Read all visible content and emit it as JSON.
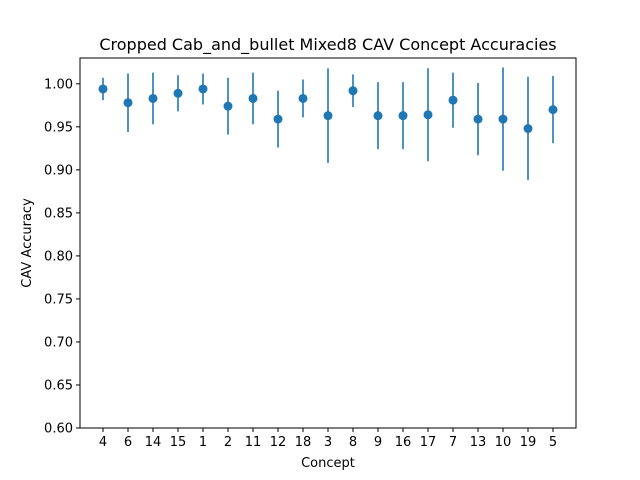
{
  "chart_data": {
    "type": "scatter",
    "title": "Cropped Cab_and_bullet Mixed8 CAV Concept Accuracies",
    "xlabel": "Concept",
    "ylabel": "CAV Accuracy",
    "ylim": [
      0.6,
      1.03
    ],
    "y_ticks": [
      "0.60",
      "0.65",
      "0.70",
      "0.75",
      "0.80",
      "0.85",
      "0.90",
      "0.95",
      "1.00"
    ],
    "grid": false,
    "legend": "none",
    "marker_color": "#1f77b4",
    "categories": [
      "4",
      "6",
      "14",
      "15",
      "1",
      "2",
      "11",
      "12",
      "18",
      "3",
      "8",
      "9",
      "16",
      "17",
      "7",
      "13",
      "10",
      "19",
      "5"
    ],
    "values": [
      0.994,
      0.978,
      0.983,
      0.989,
      0.994,
      0.974,
      0.983,
      0.959,
      0.983,
      0.963,
      0.992,
      0.963,
      0.963,
      0.964,
      0.981,
      0.959,
      0.959,
      0.948,
      0.97
    ],
    "errors": [
      0.013,
      0.034,
      0.03,
      0.021,
      0.018,
      0.033,
      0.03,
      0.033,
      0.022,
      0.055,
      0.019,
      0.039,
      0.039,
      0.054,
      0.032,
      0.042,
      0.06,
      0.06,
      0.039
    ]
  }
}
